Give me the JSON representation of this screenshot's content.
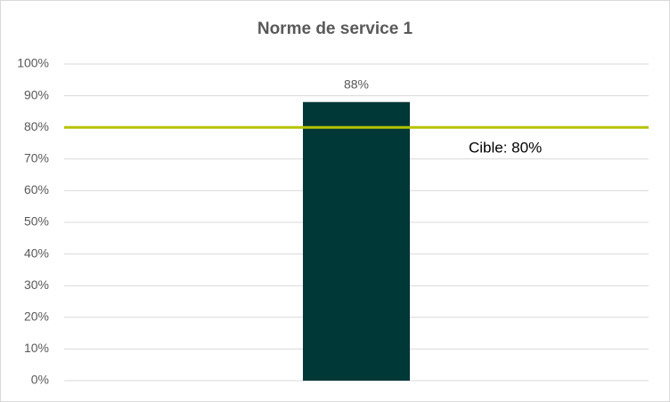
{
  "chart_data": {
    "type": "bar",
    "title": "Norme de service 1",
    "categories": [
      null
    ],
    "values": [
      88
    ],
    "value_labels": [
      "88%"
    ],
    "color": "#003737",
    "ylim": [
      0,
      100
    ],
    "yticks": [
      {
        "value": 0,
        "label": "0%"
      },
      {
        "value": 10,
        "label": "10%"
      },
      {
        "value": 20,
        "label": "20%"
      },
      {
        "value": 30,
        "label": "30%"
      },
      {
        "value": 40,
        "label": "40%"
      },
      {
        "value": 50,
        "label": "50%"
      },
      {
        "value": 60,
        "label": "60%"
      },
      {
        "value": 70,
        "label": "70%"
      },
      {
        "value": 80,
        "label": "80%"
      },
      {
        "value": 90,
        "label": "90%"
      },
      {
        "value": 100,
        "label": "100%"
      }
    ],
    "grid": true,
    "target_line": {
      "value": 80,
      "label": "Cible: 80%",
      "color": "#b5c400"
    }
  }
}
